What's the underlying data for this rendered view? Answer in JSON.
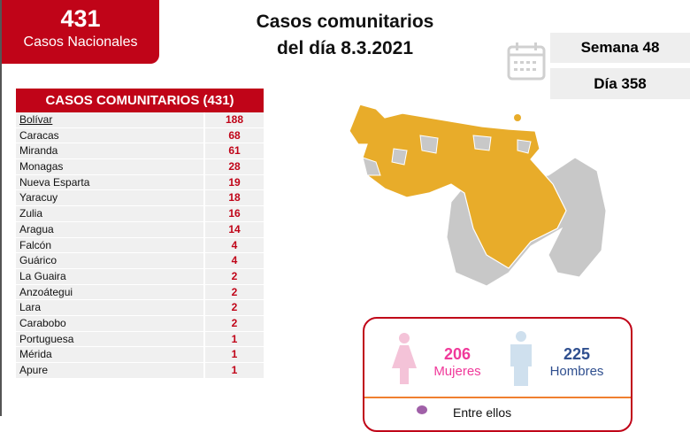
{
  "national": {
    "count": "431",
    "label": "Casos Nacionales"
  },
  "title": {
    "line1": "Casos comunitarios",
    "line2": "del día 8.3.2021"
  },
  "week": "Semana 48",
  "day": "Día 358",
  "table": {
    "header": "CASOS COMUNITARIOS (431)",
    "rows": [
      {
        "name": "Bolívar",
        "value": "188"
      },
      {
        "name": "Caracas",
        "value": "68"
      },
      {
        "name": "Miranda",
        "value": "61"
      },
      {
        "name": "Monagas",
        "value": "28"
      },
      {
        "name": "Nueva Esparta",
        "value": "19"
      },
      {
        "name": "Yaracuy",
        "value": "18"
      },
      {
        "name": "Zulia",
        "value": "16"
      },
      {
        "name": "Aragua",
        "value": "14"
      },
      {
        "name": "Falcón",
        "value": "4"
      },
      {
        "name": "Guárico",
        "value": "4"
      },
      {
        "name": "La Guaira",
        "value": "2"
      },
      {
        "name": "Anzoátegui",
        "value": "2"
      },
      {
        "name": "Lara",
        "value": "2"
      },
      {
        "name": "Carabobo",
        "value": "2"
      },
      {
        "name": "Portuguesa",
        "value": "1"
      },
      {
        "name": "Mérida",
        "value": "1"
      },
      {
        "name": "Apure",
        "value": "1"
      }
    ]
  },
  "gender": {
    "women_count": "206",
    "women_label": "Mujeres",
    "men_count": "225",
    "men_label": "Hombres",
    "footer": "Entre ellos"
  },
  "colors": {
    "accent": "#c00418",
    "map_affected": "#e8ac2a",
    "map_unaffected": "#c8c8c8",
    "women": "#f0399a",
    "men": "#2f4f8f"
  }
}
